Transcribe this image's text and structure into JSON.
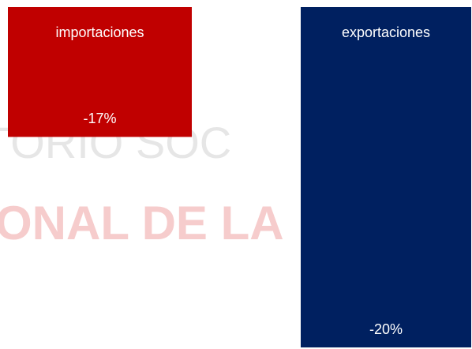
{
  "chart_data": {
    "type": "bar",
    "categories": [
      "importaciones",
      "exportaciones"
    ],
    "values": [
      -17,
      -20
    ],
    "value_labels": [
      "-17%",
      "-20%"
    ],
    "colors": [
      "#c00000",
      "#002060"
    ],
    "ylim": [
      -20,
      -15.15
    ],
    "annotations": [
      "TORIO SOC",
      "ONAL DE LA"
    ]
  }
}
